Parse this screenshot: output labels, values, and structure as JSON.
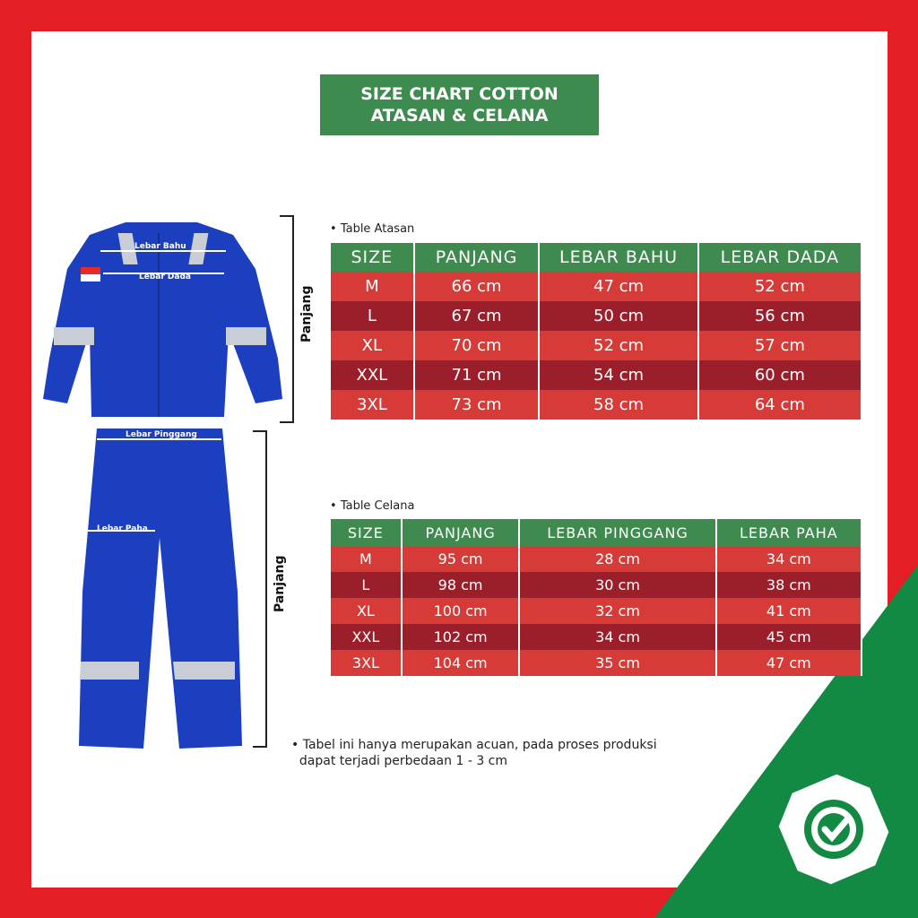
{
  "title": {
    "line1": "SIZE CHART COTTON",
    "line2": "ATASAN & CELANA"
  },
  "colors": {
    "frame": "#e31e24",
    "header_green": "#3f8a4f",
    "row_light": "#d63b37",
    "row_dark": "#9a1f2b",
    "corner_green": "#138a43",
    "garment_blue": "#1c3fc0"
  },
  "garment_labels": {
    "lebar_bahu": "Lebar Bahu",
    "lebar_dada": "Lebar Dada",
    "lebar_pinggang": "Lebar Pinggang",
    "lebar_paha": "Lebar Paha",
    "panjang_atasan": "Panjang",
    "panjang_celana": "Panjang"
  },
  "atasan": {
    "label": "Table Atasan",
    "headers": [
      "SIZE",
      "PANJANG",
      "LEBAR BAHU",
      "LEBAR DADA"
    ],
    "rows": [
      [
        "M",
        "66 cm",
        "47 cm",
        "52 cm"
      ],
      [
        "L",
        "67 cm",
        "50 cm",
        "56 cm"
      ],
      [
        "XL",
        "70 cm",
        "52 cm",
        "57 cm"
      ],
      [
        "XXL",
        "71 cm",
        "54 cm",
        "60 cm"
      ],
      [
        "3XL",
        "73 cm",
        "58 cm",
        "64 cm"
      ]
    ]
  },
  "celana": {
    "label": "Table Celana",
    "headers": [
      "SIZE",
      "PANJANG",
      "LEBAR PINGGANG",
      "LEBAR PAHA"
    ],
    "rows": [
      [
        "M",
        "95 cm",
        "28 cm",
        "34 cm"
      ],
      [
        "L",
        "98 cm",
        "30  cm",
        "38 cm"
      ],
      [
        "XL",
        "100 cm",
        "32 cm",
        "41 cm"
      ],
      [
        "XXL",
        "102 cm",
        "34 cm",
        "45 cm"
      ],
      [
        "3XL",
        "104 cm",
        "35 cm",
        "47 cm"
      ]
    ]
  },
  "note": {
    "line1": "Tabel ini hanya merupakan acuan, pada proses produksi",
    "line2": "dapat terjadi perbedaan 1 - 3 cm"
  },
  "logo_icon": "check-badge-icon"
}
